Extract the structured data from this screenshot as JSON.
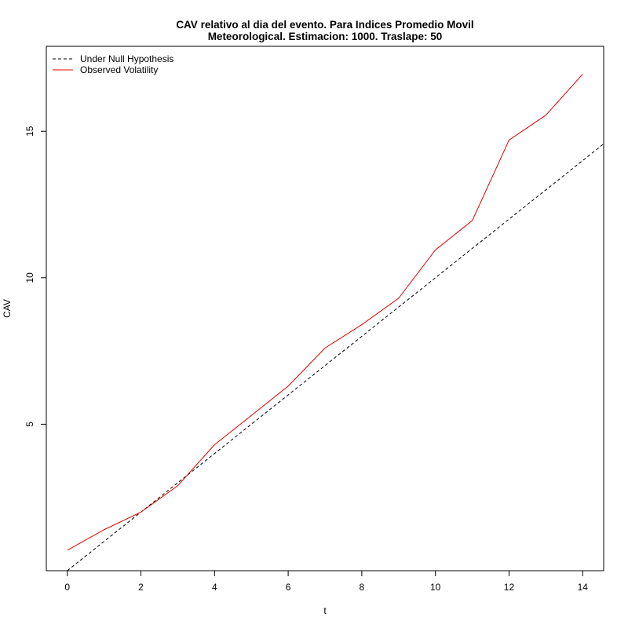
{
  "chart_data": {
    "type": "line",
    "title_line1": "CAV relativo al dia del evento. Para Indices Promedio Movil",
    "title_line2": "Meteorological. Estimacion: 1000. Traslape: 50",
    "xlabel": "t",
    "ylabel": "CAV",
    "xlim": [
      -0.57,
      14.57
    ],
    "ylim": [
      0.0,
      17.9
    ],
    "x_ticks": [
      0,
      2,
      4,
      6,
      8,
      10,
      12,
      14
    ],
    "y_ticks": [
      5,
      10,
      15
    ],
    "legend_position": "top-left",
    "series": [
      {
        "name": "Under Null Hypothesis",
        "color": "#000000",
        "dash": "dashed",
        "x": [
          0,
          14.57
        ],
        "y": [
          0,
          14.57
        ]
      },
      {
        "name": "Observed Volatility",
        "color": "#e00000",
        "dash": "solid",
        "x": [
          0,
          1,
          2,
          3,
          4,
          5,
          6,
          7,
          8,
          9,
          10,
          11,
          12,
          13,
          14
        ],
        "y": [
          0.7,
          1.4,
          2.0,
          2.9,
          4.3,
          5.3,
          6.3,
          7.6,
          8.4,
          9.3,
          10.95,
          11.95,
          14.7,
          15.55,
          16.95
        ]
      }
    ]
  }
}
